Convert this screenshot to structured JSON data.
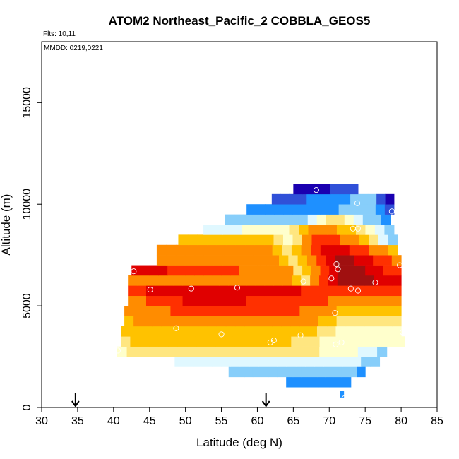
{
  "chart_data": {
    "type": "heatmap",
    "title": "ATOM2 Northeast_Pacific_2 COBBLA_GEOS5",
    "subtitle": "Flts: 10,11",
    "annotation": "MMDD: 0219,0221",
    "xlabel": "Latitude (deg N)",
    "ylabel": "Altitude (m)",
    "xlim": [
      30,
      85
    ],
    "ylim": [
      0,
      18000
    ],
    "x_ticks": [
      "30",
      "35",
      "40",
      "45",
      "50",
      "55",
      "60",
      "65",
      "70",
      "75",
      "80",
      "85"
    ],
    "y_ticks": [
      "0",
      "5000",
      "10000",
      "15000"
    ],
    "y_tick_values": [
      0,
      5000,
      10000,
      15000
    ],
    "x_tick_values": [
      30,
      35,
      40,
      45,
      50,
      55,
      60,
      65,
      70,
      75,
      80,
      85
    ],
    "colormap": [
      "#1a00b0",
      "#3050d8",
      "#1e90ff",
      "#87cefa",
      "#e0f8ff",
      "#ffffcc",
      "#ffe680",
      "#ffc200",
      "#ff8c00",
      "#ff3000",
      "#e00000",
      "#a01010"
    ],
    "value_range": [
      0,
      11
    ],
    "grid": false,
    "bands": [
      {
        "alt_bottom": 500,
        "alt_top": 800,
        "lat_start": 71.5,
        "lat_end": 72.0,
        "values": [
          2
        ]
      },
      {
        "alt_bottom": 1000,
        "alt_top": 1500,
        "lat_start": 64.0,
        "lat_end": 73.0,
        "values": [
          2,
          2,
          2,
          2,
          2,
          2
        ]
      },
      {
        "alt_bottom": 1500,
        "alt_top": 2000,
        "lat_start": 56.0,
        "lat_end": 75.0,
        "values": [
          3,
          3,
          3,
          3,
          3,
          3,
          3,
          3,
          3,
          3,
          3,
          3,
          3,
          3,
          3,
          3,
          2
        ]
      },
      {
        "alt_bottom": 2000,
        "alt_top": 2500,
        "lat_start": 48.5,
        "lat_end": 77.0,
        "values": [
          4,
          4,
          4,
          4,
          4,
          4,
          4,
          4,
          4,
          4,
          4,
          4,
          4,
          4,
          4,
          4,
          4,
          4,
          4,
          4,
          3,
          3
        ]
      },
      {
        "alt_bottom": 2500,
        "alt_top": 3000,
        "lat_start": 40.5,
        "lat_end": 78.0,
        "values": [
          5,
          6,
          6,
          6,
          6,
          6,
          6,
          6,
          6,
          6,
          6,
          6,
          6,
          6,
          6,
          6,
          6,
          6,
          6,
          6,
          6,
          5,
          5,
          5,
          5,
          4,
          4,
          3
        ]
      },
      {
        "alt_bottom": 3000,
        "alt_top": 3500,
        "lat_start": 41.0,
        "lat_end": 80.5,
        "values": [
          6,
          7,
          7,
          7,
          7,
          7,
          7,
          7,
          7,
          7,
          7,
          7,
          7,
          7,
          7,
          7,
          7,
          7,
          6,
          6,
          6,
          5,
          5,
          5,
          5,
          5,
          5,
          5,
          5,
          5
        ]
      },
      {
        "alt_bottom": 3500,
        "alt_top": 4000,
        "lat_start": 41.0,
        "lat_end": 80.0,
        "values": [
          7,
          7,
          7,
          7,
          7,
          7,
          7,
          7,
          7,
          7,
          7,
          7,
          7,
          7,
          7,
          7,
          7,
          7,
          7,
          7,
          7,
          6,
          6,
          5,
          5,
          5,
          5,
          5,
          5,
          5
        ]
      },
      {
        "alt_bottom": 4000,
        "alt_top": 4500,
        "lat_start": 41.5,
        "lat_end": 80.0,
        "values": [
          7,
          8,
          8,
          8,
          8,
          8,
          8,
          8,
          8,
          8,
          8,
          8,
          8,
          8,
          8,
          8,
          8,
          8,
          8,
          8,
          8,
          7,
          7,
          6,
          6,
          6,
          6,
          6,
          6,
          6
        ]
      },
      {
        "alt_bottom": 4500,
        "alt_top": 5000,
        "lat_start": 41.5,
        "lat_end": 80.0,
        "values": [
          8,
          8,
          8,
          8,
          8,
          9,
          9,
          9,
          9,
          9,
          9,
          9,
          9,
          9,
          9,
          9,
          9,
          9,
          9,
          8,
          8,
          8,
          8,
          7,
          7,
          7,
          7,
          7,
          7,
          7
        ]
      },
      {
        "alt_bottom": 5000,
        "alt_top": 5500,
        "lat_start": 42.0,
        "lat_end": 80.0,
        "values": [
          8,
          8,
          9,
          9,
          9,
          9,
          10,
          10,
          10,
          10,
          10,
          10,
          10,
          9,
          9,
          9,
          9,
          9,
          9,
          9,
          9,
          9,
          8,
          8,
          8,
          8,
          8,
          8,
          8,
          8
        ]
      },
      {
        "alt_bottom": 5500,
        "alt_top": 6000,
        "lat_start": 42.0,
        "lat_end": 80.0,
        "values": [
          9,
          9,
          10,
          10,
          10,
          10,
          10,
          10,
          10,
          10,
          10,
          10,
          10,
          10,
          10,
          10,
          10,
          10,
          10,
          9,
          9,
          9,
          9,
          9,
          9,
          9,
          9,
          9,
          9,
          9
        ]
      },
      {
        "alt_bottom": 6000,
        "alt_top": 6500,
        "lat_start": 42.0,
        "lat_end": 80.0,
        "values": [
          8,
          8,
          8,
          8,
          8,
          8,
          8,
          8,
          8,
          8,
          8,
          8,
          8,
          8,
          8,
          8,
          8,
          8,
          7,
          6,
          8,
          9,
          10,
          11,
          11,
          11,
          11,
          10,
          10,
          10
        ]
      },
      {
        "alt_bottom": 6500,
        "alt_top": 7000,
        "lat_start": 42.5,
        "lat_end": 80.0,
        "values": [
          10,
          10,
          10,
          10,
          9,
          9,
          9,
          9,
          9,
          9,
          9,
          9,
          8,
          8,
          8,
          8,
          8,
          8,
          6,
          7,
          8,
          9,
          10,
          11,
          11,
          11,
          10,
          10,
          9,
          9
        ]
      },
      {
        "alt_bottom": 7000,
        "alt_top": 7500,
        "lat_start": 46.0,
        "lat_end": 80.0,
        "values": [
          8,
          8,
          8,
          8,
          8,
          8,
          8,
          8,
          8,
          8,
          8,
          8,
          8,
          7,
          6,
          7,
          8,
          9,
          10,
          11,
          11,
          10,
          10,
          9,
          9,
          8
        ]
      },
      {
        "alt_bottom": 7500,
        "alt_top": 8000,
        "lat_start": 46.0,
        "lat_end": 79.5,
        "values": [
          8,
          8,
          8,
          8,
          8,
          8,
          8,
          8,
          8,
          8,
          8,
          8,
          7,
          6,
          7,
          8,
          9,
          10,
          10,
          10,
          9,
          9,
          8,
          8,
          7
        ]
      },
      {
        "alt_bottom": 8000,
        "alt_top": 8500,
        "lat_start": 49.0,
        "lat_end": 79.5,
        "values": [
          7,
          7,
          7,
          7,
          7,
          7,
          7,
          7,
          7,
          7,
          6,
          5,
          6,
          8,
          9,
          9,
          9,
          8,
          8,
          7,
          6,
          4,
          3
        ]
      },
      {
        "alt_bottom": 8500,
        "alt_top": 9000,
        "lat_start": 52.5,
        "lat_end": 79.0,
        "values": [
          4,
          4,
          4,
          4,
          5,
          5,
          5,
          5,
          5,
          6,
          7,
          8,
          8,
          8,
          7,
          7,
          6,
          5,
          4,
          3
        ]
      },
      {
        "alt_bottom": 9000,
        "alt_top": 9500,
        "lat_start": 55.5,
        "lat_end": 78.5,
        "values": [
          3,
          3,
          3,
          3,
          3,
          3,
          3,
          3,
          3,
          4,
          5,
          6,
          6,
          5,
          4,
          3,
          3,
          2
        ]
      },
      {
        "alt_bottom": 9500,
        "alt_top": 10000,
        "lat_start": 58.5,
        "lat_end": 79.0,
        "values": [
          2,
          2,
          2,
          2,
          2,
          2,
          2,
          2,
          2,
          2,
          3,
          3,
          3,
          3,
          2,
          1
        ]
      },
      {
        "alt_bottom": 10000,
        "alt_top": 10500,
        "lat_start": 62.0,
        "lat_end": 79.0,
        "values": [
          1,
          1,
          1,
          1,
          2,
          2,
          2,
          2,
          2,
          3,
          3,
          3,
          1,
          0
        ]
      },
      {
        "alt_bottom": 10500,
        "alt_top": 11000,
        "lat_start": 65.0,
        "lat_end": 74.0,
        "values": [
          0,
          0,
          0,
          0,
          1,
          1,
          1
        ]
      }
    ],
    "flight_points": [
      [
        40.6,
        2800
      ],
      [
        42.8,
        6700
      ],
      [
        45.1,
        5800
      ],
      [
        48.7,
        3900
      ],
      [
        50.8,
        5850
      ],
      [
        55.0,
        3600
      ],
      [
        57.2,
        5900
      ],
      [
        61.8,
        3200
      ],
      [
        62.3,
        3300
      ],
      [
        66.0,
        3550
      ],
      [
        66.4,
        6200
      ],
      [
        68.2,
        10700
      ],
      [
        70.3,
        6350
      ],
      [
        70.8,
        4650
      ],
      [
        71.0,
        7050
      ],
      [
        71.2,
        6800
      ],
      [
        71.7,
        3200
      ],
      [
        73.0,
        5850
      ],
      [
        73.3,
        8800
      ],
      [
        74.0,
        8800
      ],
      [
        74.0,
        5750
      ],
      [
        73.9,
        10050
      ],
      [
        76.4,
        6150
      ],
      [
        78.7,
        9650
      ],
      [
        79.8,
        7000
      ],
      [
        80.2,
        3700
      ],
      [
        72.1,
        450
      ],
      [
        70.9,
        3100
      ]
    ],
    "markers": [
      {
        "lat": 34.7,
        "type": "arrow-down"
      },
      {
        "lat": 61.2,
        "type": "arrow-down"
      }
    ]
  }
}
